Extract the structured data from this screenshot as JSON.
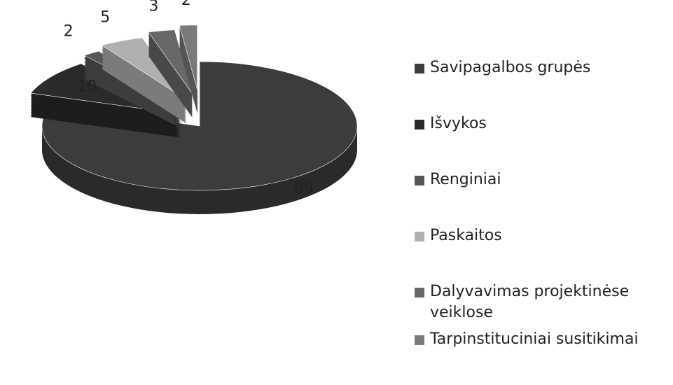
{
  "chart_data": {
    "type": "pie",
    "categories": [
      "Savipagalbos grupės",
      "Išvykos",
      "Renginiai",
      "Paskaitos",
      "Dalyvavimas projektinėse veiklose",
      "Tarpinstituciniai susitikimai"
    ],
    "values": [
      89,
      10,
      2,
      5,
      3,
      2
    ],
    "colors": [
      "#3c3c3c",
      "#2a2a2a",
      "#575757",
      "#b0b0b0",
      "#686868",
      "#7a7a7a"
    ],
    "legend": "right"
  }
}
